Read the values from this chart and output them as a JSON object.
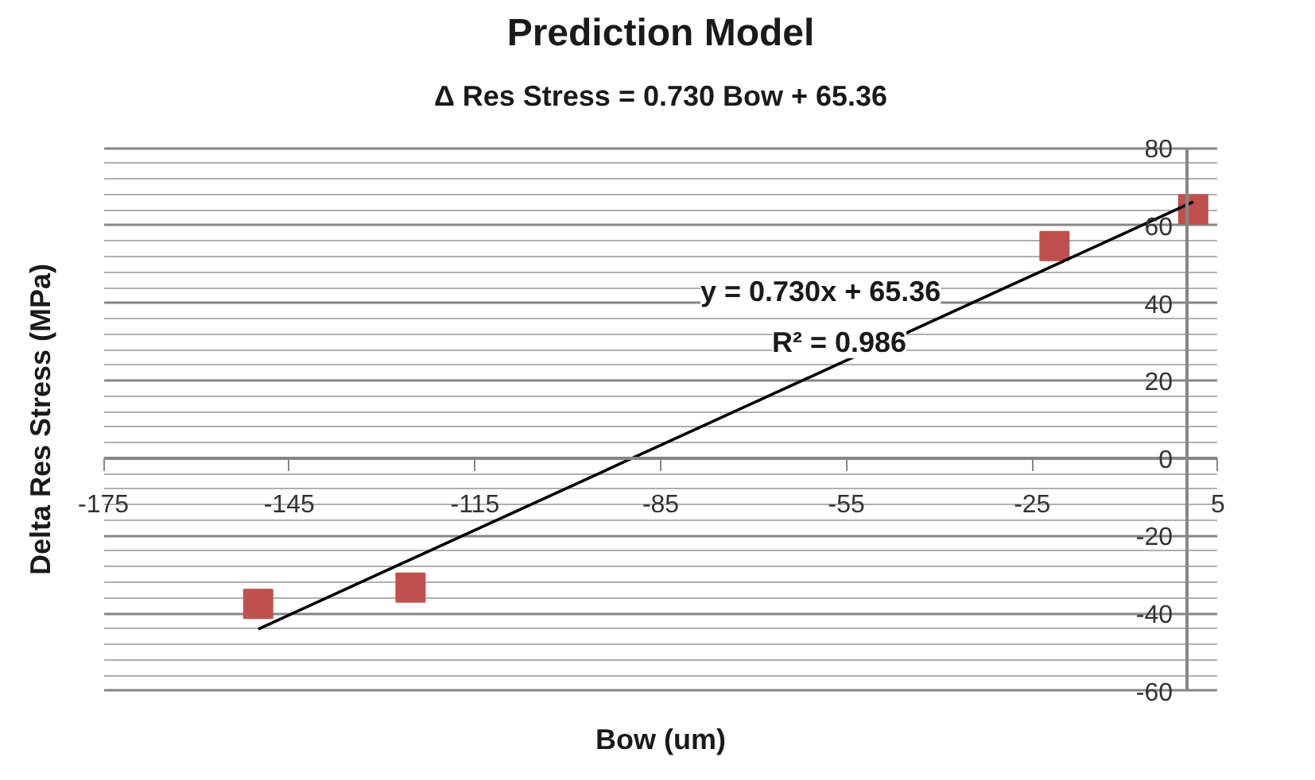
{
  "chart_data": {
    "type": "scatter",
    "title": "Prediction Model",
    "subtitle": "Δ Res Stress = 0.730 Bow + 65.36",
    "xlabel": "Bow (um)",
    "ylabel": "Delta Res Stress (MPa)",
    "x": [
      -150,
      -125.4,
      -21.4,
      1
    ],
    "series": [
      {
        "color": "#c0504d",
        "values": [
          -37.6,
          -33.4,
          54.7,
          64.2
        ],
        "marker": "square"
      },
      {
        "type": "line",
        "color": "#000000",
        "x": [
          -150,
          1
        ],
        "values": [
          -44.1,
          66.1
        ],
        "line_style": "solid"
      }
    ],
    "annotations": [
      "y = 0.730x + 65.36",
      "R² = 0.986"
    ],
    "xlim": [
      -175,
      5
    ],
    "xticks": [
      -175,
      -145,
      -115,
      -85,
      -55,
      -25,
      5
    ],
    "ylim": [
      -60,
      80
    ],
    "yticks": [
      -60,
      -40,
      -20,
      0,
      20,
      40,
      60,
      80
    ],
    "grid": "y"
  }
}
